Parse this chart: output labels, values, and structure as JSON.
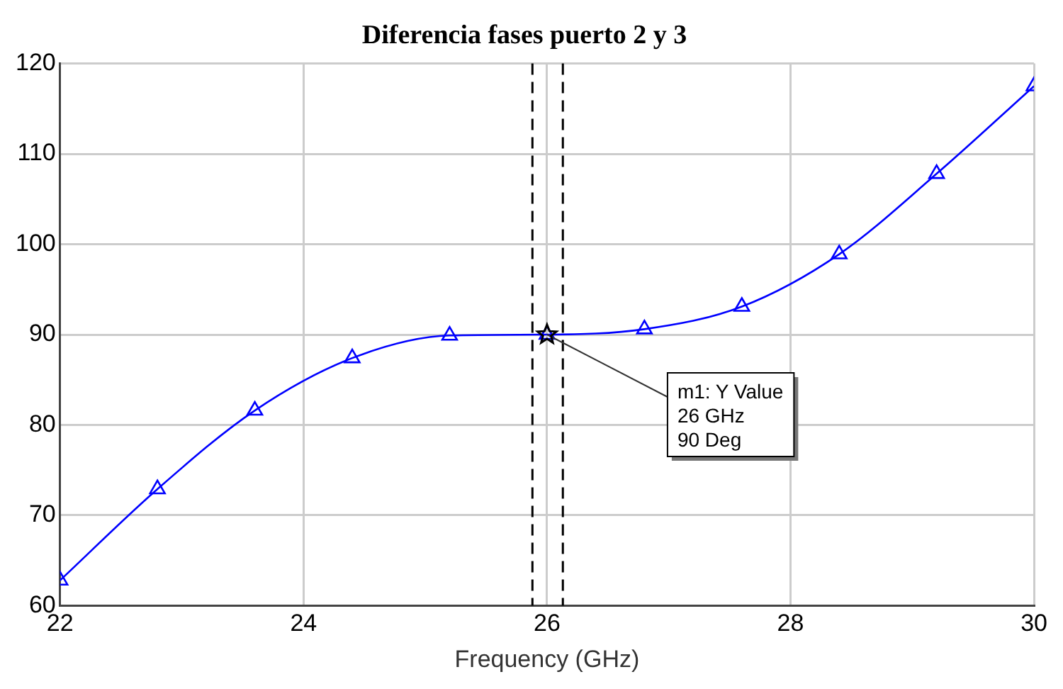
{
  "chart_data": {
    "type": "line",
    "title": "Diferencia fases puerto 2 y 3",
    "xlabel": "Frequency (GHz)",
    "x": [
      22,
      22.8,
      23.6,
      24.4,
      25.2,
      26,
      26.8,
      27.6,
      28.4,
      29.2,
      30
    ],
    "series": [
      {
        "color": "#0000ff",
        "values": [
          62.8,
          72.9,
          81.6,
          87.4,
          89.9,
          90,
          90.6,
          93.1,
          98.9,
          107.8,
          117.5
        ]
      }
    ],
    "xlim": [
      22,
      30
    ],
    "xticks": [
      22,
      24,
      26,
      28,
      30
    ],
    "ylim": [
      60,
      120
    ],
    "yticks": [
      60,
      70,
      80,
      90,
      100,
      110,
      120
    ],
    "grid": true,
    "legend": false,
    "marker": "triangle",
    "line_style": "solid",
    "ref_lines": [
      {
        "axis": "x",
        "value": 25.88,
        "color": "#000000",
        "line_style": "dashed"
      },
      {
        "axis": "x",
        "value": 26.13,
        "color": "#000000",
        "line_style": "dashed"
      }
    ],
    "annotations": [
      {
        "text": "m1: Y Value\n26 GHz\n90 Deg",
        "x": 26,
        "y": 90
      }
    ]
  }
}
